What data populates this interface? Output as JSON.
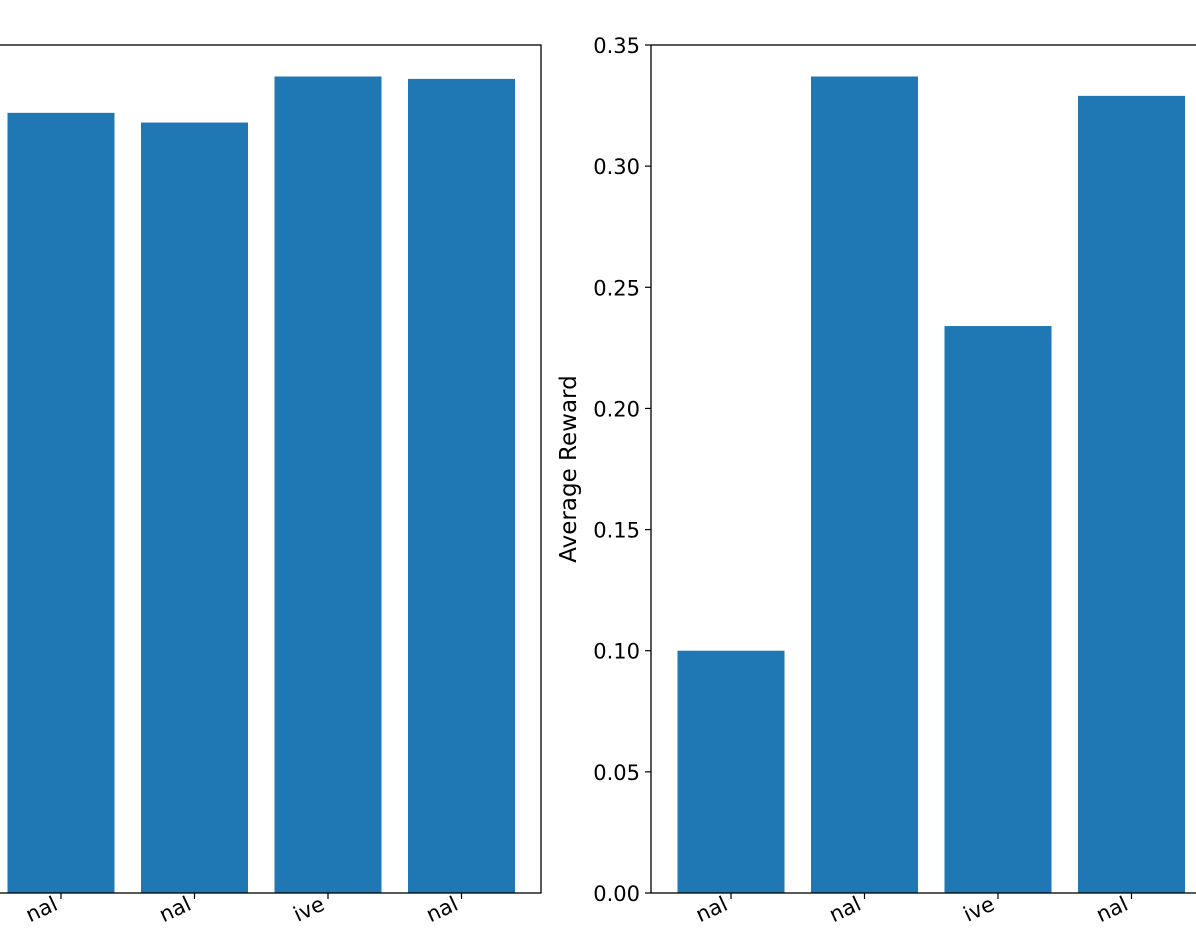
{
  "chart_data": [
    {
      "type": "bar",
      "categories": [
        "",
        "",
        "",
        ""
      ],
      "tick_label_fragments": [
        "nal",
        "nal",
        "ive",
        "nal"
      ],
      "values": [
        0.322,
        0.318,
        0.337,
        0.336
      ],
      "ylim": [
        0,
        0.35
      ],
      "yticks": [],
      "ylabel": "",
      "bar_color": "#1f77b4"
    },
    {
      "type": "bar",
      "categories": [
        "",
        "",
        "",
        ""
      ],
      "tick_label_fragments": [
        "nal",
        "nal",
        "ive",
        "nal"
      ],
      "values": [
        0.1,
        0.337,
        0.234,
        0.329
      ],
      "ylim": [
        0,
        0.35
      ],
      "yticks": [
        "0.00",
        "0.05",
        "0.10",
        "0.15",
        "0.20",
        "0.25",
        "0.30",
        "0.35"
      ],
      "ylabel": "Average Reward",
      "bar_color": "#1f77b4"
    }
  ]
}
